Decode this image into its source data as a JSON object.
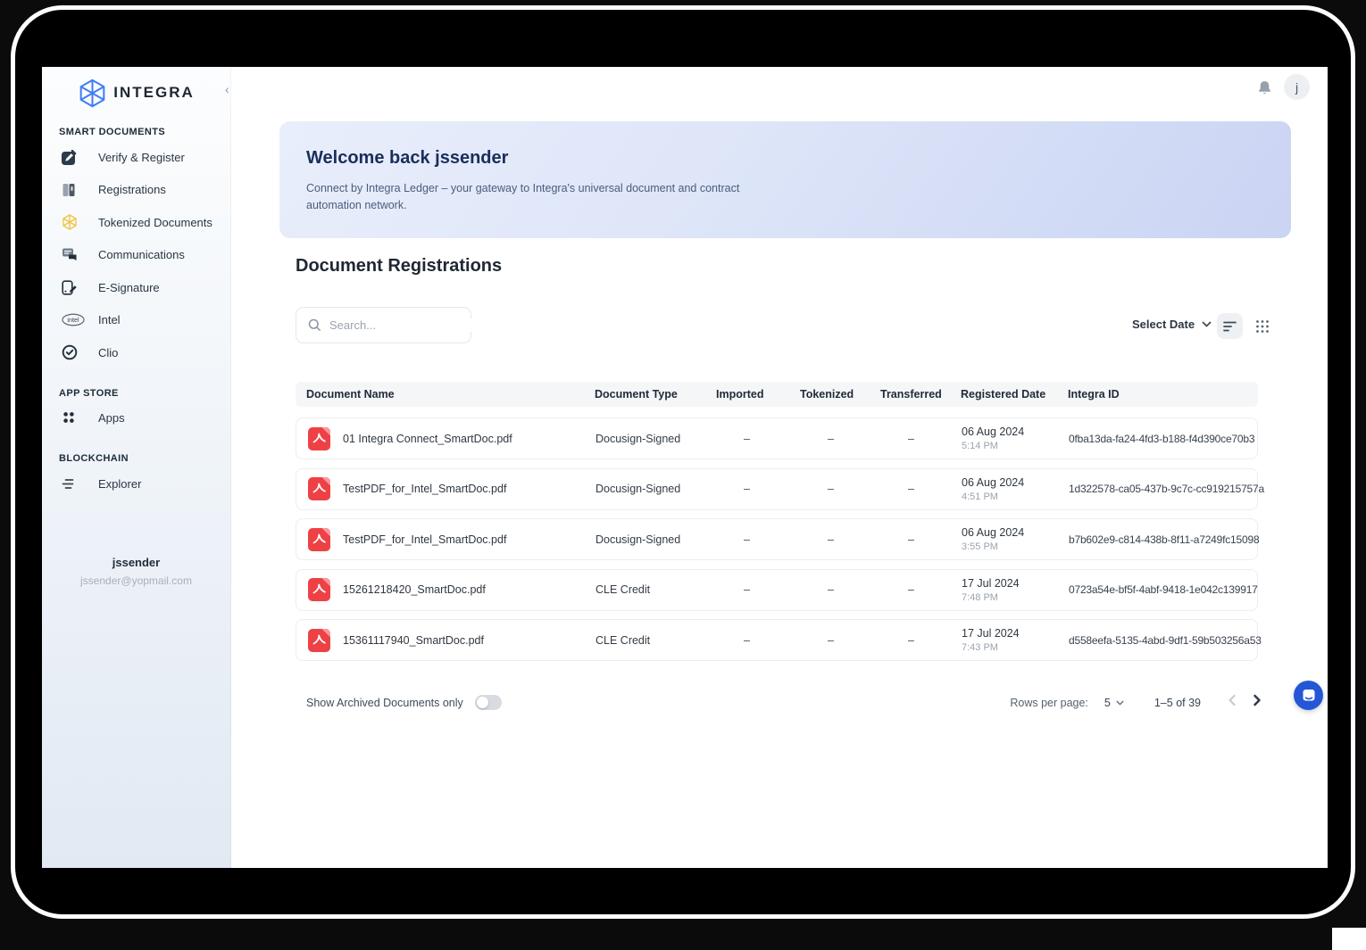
{
  "app": {
    "logo_text": "INTEGRA"
  },
  "header": {
    "avatar_initial": "j",
    "bell_icon": "bell-icon"
  },
  "sidebar": {
    "sections": [
      {
        "label": "SMART DOCUMENTS",
        "items": [
          {
            "icon": "verify-register",
            "label": "Verify & Register"
          },
          {
            "icon": "registrations",
            "label": "Registrations"
          },
          {
            "icon": "tokenized-documents",
            "label": "Tokenized Documents"
          },
          {
            "icon": "communications",
            "label": "Communications"
          },
          {
            "icon": "e-signature",
            "label": "E-Signature"
          },
          {
            "icon": "intel",
            "label": "Intel"
          },
          {
            "icon": "clio",
            "label": "Clio"
          }
        ]
      },
      {
        "label": "APP STORE",
        "items": [
          {
            "icon": "apps",
            "label": "Apps"
          }
        ]
      },
      {
        "label": "BLOCKCHAIN",
        "items": [
          {
            "icon": "explorer",
            "label": "Explorer"
          }
        ]
      }
    ],
    "collapse_icon": "chevron-left-icon",
    "user": {
      "name": "jssender",
      "email": "jssender@yopmail.com"
    }
  },
  "banner": {
    "title": "Welcome back jssender",
    "subtitle": "Connect by Integra Ledger – your gateway to Integra's universal document and contract automation network."
  },
  "main": {
    "title": "Document Registrations",
    "search_placeholder": "Search...",
    "date_filter_label": "Select Date",
    "view_toggles": [
      "list-view-icon",
      "grid-view-icon"
    ],
    "table": {
      "columns": [
        "Document Name",
        "Document Type",
        "Imported",
        "Tokenized",
        "Transferred",
        "Registered Date",
        "Integra ID"
      ],
      "rows": [
        {
          "name": "01 Integra Connect_SmartDoc.pdf",
          "type": "Docusign-Signed",
          "imported": "–",
          "tokenized": "–",
          "transferred": "–",
          "date": "06 Aug 2024",
          "time": "5:14 PM",
          "integra_id": "0fba13da-fa24-4fd3-b188-f4d390ce70b3"
        },
        {
          "name": "TestPDF_for_Intel_SmartDoc.pdf",
          "type": "Docusign-Signed",
          "imported": "–",
          "tokenized": "–",
          "transferred": "–",
          "date": "06 Aug 2024",
          "time": "4:51 PM",
          "integra_id": "1d322578-ca05-437b-9c7c-cc919215757a"
        },
        {
          "name": "TestPDF_for_Intel_SmartDoc.pdf",
          "type": "Docusign-Signed",
          "imported": "–",
          "tokenized": "–",
          "transferred": "–",
          "date": "06 Aug 2024",
          "time": "3:55 PM",
          "integra_id": "b7b602e9-c814-438b-8f11-a7249fc15098"
        },
        {
          "name": "15261218420_SmartDoc.pdf",
          "type": "CLE Credit",
          "imported": "–",
          "tokenized": "–",
          "transferred": "–",
          "date": "17 Jul 2024",
          "time": "7:48 PM",
          "integra_id": "0723a54e-bf5f-4abf-9418-1e042c139917"
        },
        {
          "name": "15361117940_SmartDoc.pdf",
          "type": "CLE Credit",
          "imported": "–",
          "tokenized": "–",
          "transferred": "–",
          "date": "17 Jul 2024",
          "time": "7:43 PM",
          "integra_id": "d558eefa-5135-4abd-9df1-59b503256a53"
        }
      ]
    },
    "footer": {
      "archived_toggle_label": "Show Archived Documents only",
      "toggle_state": "off",
      "rows_per_page_label": "Rows per page:",
      "rows_per_page_value": "5",
      "range_label": "1–5 of 39"
    }
  },
  "colors": {
    "accent_blue": "#3d7ef5",
    "banner_title": "#1a2e5c",
    "pdf_red": "#ee4145",
    "fab_blue": "#2457d6",
    "tokenized_yellow": "#f2c23e",
    "toolbar_active_bg": "#eef0f4"
  }
}
